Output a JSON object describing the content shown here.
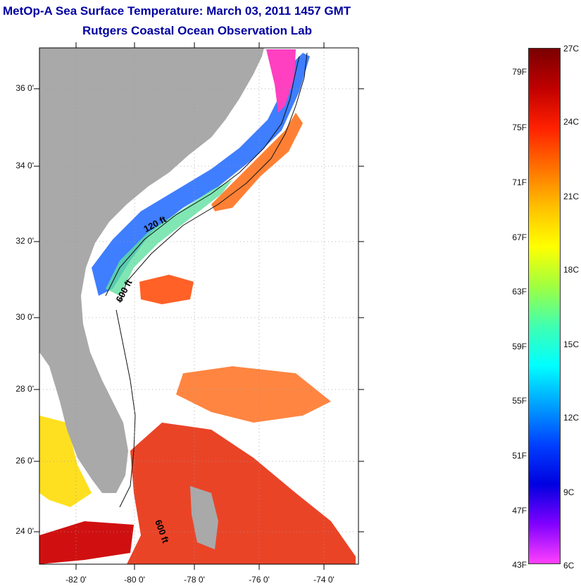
{
  "title": {
    "line1": "MetOp-A Sea Surface Temperature:  March 03, 2011 1457 GMT",
    "line2": "Rutgers Coastal Ocean Observation Lab"
  },
  "axes": {
    "lat_labels": [
      "36 0'",
      "34 0'",
      "32 0'",
      "30 0'",
      "28 0'",
      "26 0'",
      "24 0'"
    ],
    "lon_labels": [
      "-82 0'",
      "-80 0'",
      "-78 0'",
      "-76 0'",
      "-74 0'"
    ],
    "lon_range": [
      -83,
      -72.5
    ],
    "lat_range": [
      23.1,
      37.1
    ]
  },
  "contours": {
    "labels": [
      "120 ft",
      "600 ft",
      "600 ft"
    ]
  },
  "colorbar": {
    "fahrenheit_labels": [
      "79F",
      "75F",
      "71F",
      "67F",
      "63F",
      "59F",
      "55F",
      "51F",
      "47F",
      "43F"
    ],
    "celsius_labels": [
      "27C",
      "24C",
      "21C",
      "18C",
      "15C",
      "12C",
      "9C",
      "6C"
    ],
    "colors": [
      "#7a0000",
      "#c00000",
      "#ff2000",
      "#ff7000",
      "#ffc000",
      "#ffff00",
      "#a0ff40",
      "#40ffb0",
      "#00ffff",
      "#00a0ff",
      "#0040ff",
      "#0000e0",
      "#8000ff",
      "#ff40ff"
    ]
  },
  "colors": {
    "land": "#a9a9a9",
    "title": "#0000a0",
    "grid": "#9a9a9a"
  }
}
